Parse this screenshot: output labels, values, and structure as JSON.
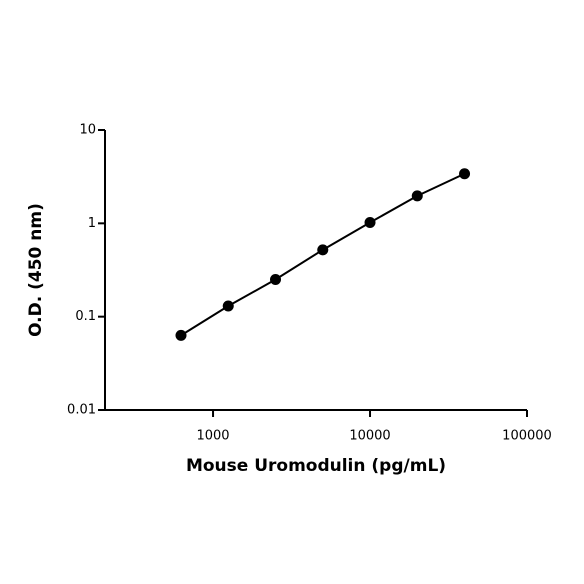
{
  "chart_data": {
    "type": "scatter",
    "xlabel": "Mouse Uromodulin (pg/mL)",
    "ylabel": "O.D. (450 nm)",
    "x": [
      625,
      1250,
      2500,
      5000,
      10000,
      20000,
      40000
    ],
    "values": [
      0.063,
      0.13,
      0.25,
      0.52,
      1.02,
      1.97,
      3.4
    ],
    "color": "#000000",
    "line": true,
    "xscale": "log",
    "yscale": "log",
    "xlim": [
      205,
      100000
    ],
    "xticks": [
      1000,
      10000,
      100000
    ],
    "ylim": [
      0.01,
      10
    ],
    "yticks": [
      0.01,
      0.1,
      1,
      10
    ]
  }
}
